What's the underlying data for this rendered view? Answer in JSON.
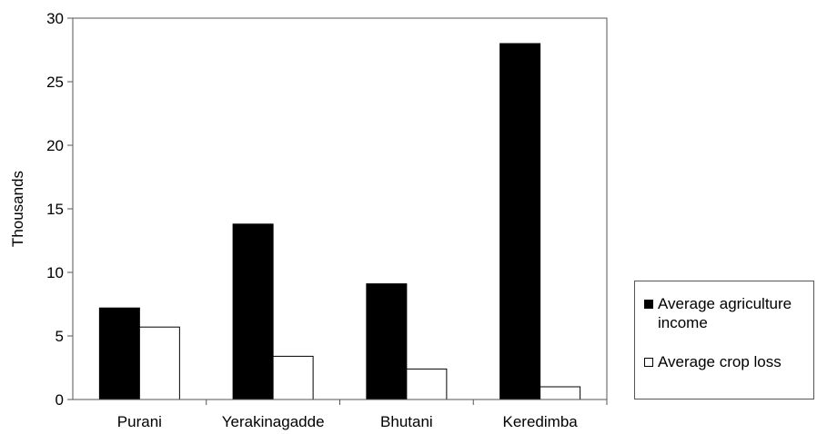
{
  "chart_data": {
    "type": "bar",
    "title": "",
    "xlabel": "",
    "ylabel": "Thousands",
    "ylim": [
      0,
      30
    ],
    "yticks": [
      0,
      5,
      10,
      15,
      20,
      25,
      30
    ],
    "categories": [
      "Purani",
      "Yerakinagadde",
      "Bhutani",
      "Keredimba"
    ],
    "series": [
      {
        "name": "Average agriculture income",
        "values": [
          7.2,
          13.8,
          9.1,
          28.0
        ],
        "color": "#000000"
      },
      {
        "name": "Average crop loss",
        "values": [
          5.7,
          3.4,
          2.4,
          1.0
        ],
        "color": "#ffffff"
      }
    ],
    "grid": false,
    "legend_position": "right"
  }
}
